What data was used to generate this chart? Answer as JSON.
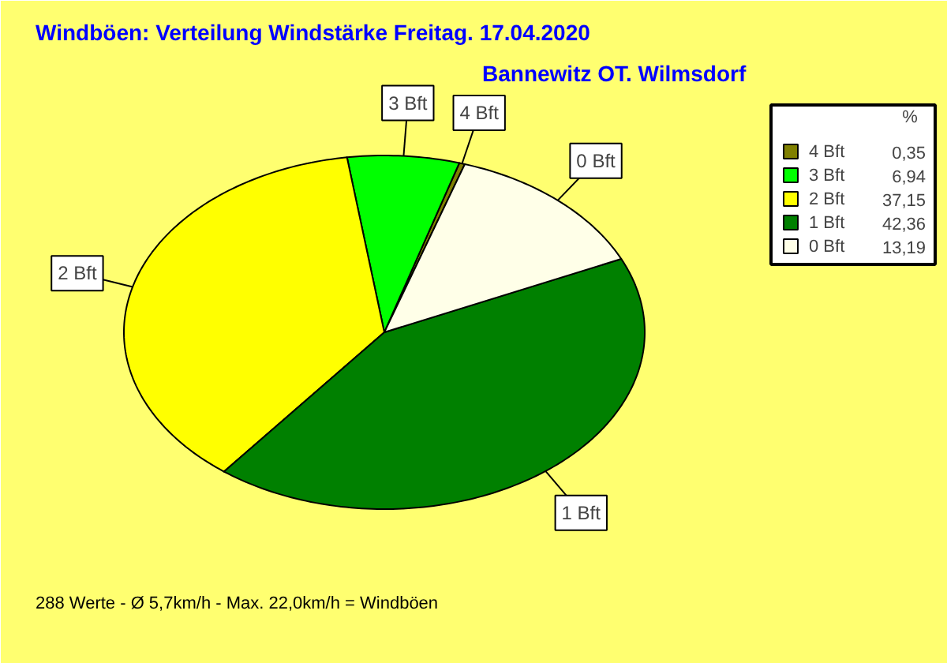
{
  "chart_data": {
    "type": "pie",
    "title": "Windböen: Verteilung Windstärke  Freitag. 17.04.2020",
    "subtitle": "Bannewitz OT. Wilmsdorf",
    "categories": [
      "4 Bft",
      "3 Bft",
      "2 Bft",
      "1 Bft",
      "0 Bft"
    ],
    "values": [
      0.35,
      6.94,
      37.15,
      42.36,
      13.19
    ],
    "colors": [
      "#808000",
      "#00ff00",
      "#ffff00",
      "#008000",
      "#ffffe8"
    ],
    "value_labels": [
      "0,35",
      "6,94",
      "37,15",
      "42,36",
      "13,19"
    ],
    "legend": "top right",
    "legend_title": "%",
    "annotations": [
      "288 Werte   -   Ø 5,7km/h   -   Max. 22,0km/h = Windböen"
    ]
  }
}
